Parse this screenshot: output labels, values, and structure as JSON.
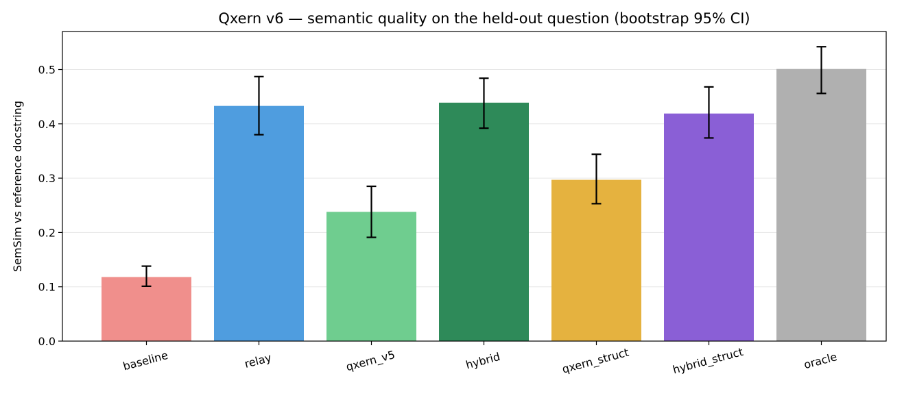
{
  "chart_data": {
    "type": "bar",
    "title": "Qxern v6 — semantic quality on the held-out question (bootstrap 95% CI)",
    "xlabel": "",
    "ylabel": "SemSim vs reference docstring",
    "ylim": [
      0,
      0.57
    ],
    "yticks": [
      "0.0",
      "0.1",
      "0.2",
      "0.3",
      "0.4",
      "0.5"
    ],
    "grid": "horizontal",
    "categories": [
      "baseline",
      "relay",
      "qxern_v5",
      "hybrid",
      "qxern_struct",
      "hybrid_struct",
      "oracle"
    ],
    "values": [
      0.118,
      0.433,
      0.238,
      0.439,
      0.297,
      0.419,
      0.501
    ],
    "ci_low": [
      0.101,
      0.38,
      0.191,
      0.392,
      0.253,
      0.374,
      0.456
    ],
    "ci_high": [
      0.138,
      0.487,
      0.285,
      0.484,
      0.344,
      0.468,
      0.542
    ],
    "colors": [
      "#f08f8c",
      "#4f9ddf",
      "#6fcd8f",
      "#2e8a59",
      "#e5b23f",
      "#8a5fd6",
      "#b0b0b0"
    ]
  }
}
